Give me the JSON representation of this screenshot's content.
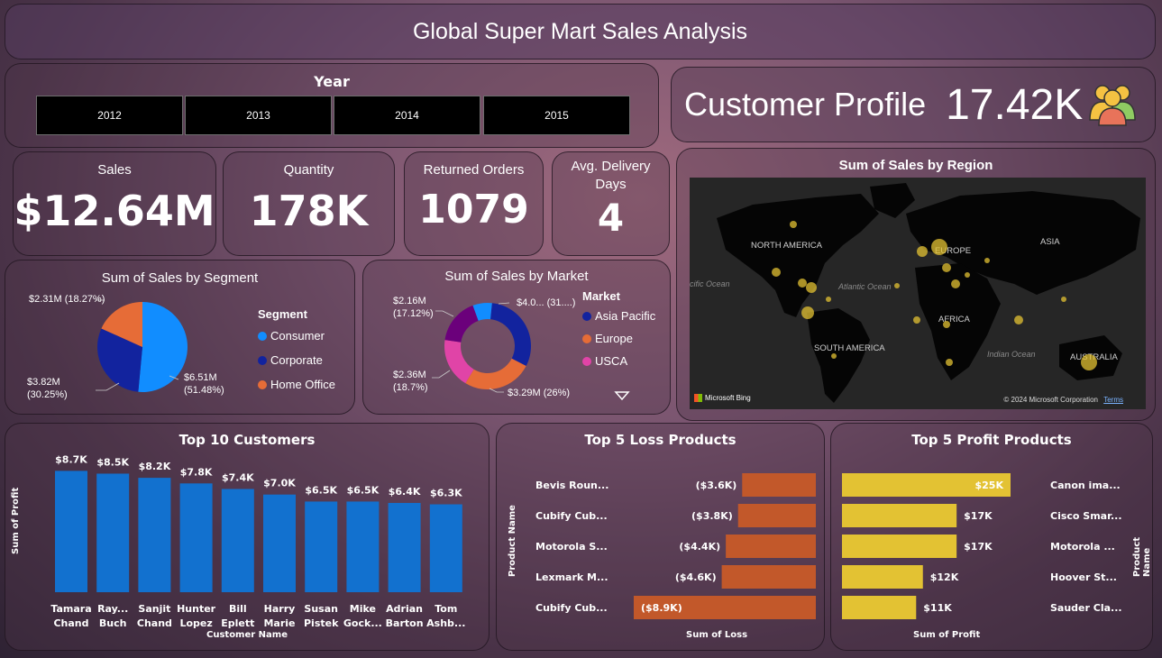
{
  "header": {
    "title": "Global Super Mart Sales Analysis"
  },
  "year_slicer": {
    "label": "Year",
    "options": [
      "2012",
      "2013",
      "2014",
      "2015"
    ]
  },
  "customer_profile": {
    "label": "Customer Profile",
    "value": "17.42K",
    "icon": "people-icon"
  },
  "kpis": {
    "sales": {
      "title": "Sales",
      "value": "$12.64M"
    },
    "quantity": {
      "title": "Quantity",
      "value": "178K"
    },
    "returned": {
      "title": "Returned Orders",
      "value": "1079"
    },
    "delivery": {
      "title_line1": "Avg. Delivery",
      "title_line2": "Days",
      "value": "4"
    }
  },
  "segment_chart": {
    "title": "Sum of Sales by Segment",
    "legend_title": "Segment",
    "slices": [
      {
        "name": "Consumer",
        "label1": "$6.51M",
        "label2": "(51.48%)",
        "value": 51.48,
        "color": "#118DFF"
      },
      {
        "name": "Corporate",
        "label1": "$3.82M",
        "label2": "(30.25%)",
        "value": 30.25,
        "color": "#12239E"
      },
      {
        "name": "Home Office",
        "label1": "$2.31M (18.27%)",
        "label2": "",
        "value": 18.27,
        "color": "#E66C37"
      }
    ]
  },
  "market_chart": {
    "title": "Sum of Sales by Market",
    "legend_title": "Market",
    "legend": [
      {
        "name": "Asia Pacific",
        "color": "#12239E"
      },
      {
        "name": "Europe",
        "color": "#E66C37"
      },
      {
        "name": "USCA",
        "color": "#E044A7"
      }
    ],
    "slices": [
      {
        "value": 31,
        "color": "#12239E"
      },
      {
        "value": 26,
        "color": "#E66C37"
      },
      {
        "value": 18.7,
        "color": "#E044A7"
      },
      {
        "value": 17.12,
        "color": "#6B007B"
      },
      {
        "value": 7.18,
        "color": "#118DFF"
      }
    ],
    "labels": {
      "top_right": "$4.0... (31....)",
      "bottom_right": "$3.29M (26%)",
      "bottom_left1": "$2.36M",
      "bottom_left2": "(18.7%)",
      "top_left1": "$2.16M",
      "top_left2": "(17.12%)"
    }
  },
  "region_map": {
    "title": "Sum of Sales by Region",
    "labels": {
      "north_america": "NORTH AMERICA",
      "europe": "EUROPE",
      "asia": "ASIA",
      "africa": "AFRICA",
      "south_america": "SOUTH AMERICA",
      "australia": "AUSTRALIA",
      "atlantic": "Atlantic Ocean",
      "indian": "Indian Ocean",
      "pacific": "cific Ocean"
    },
    "bing": "Microsoft Bing",
    "copyright": "© 2024 Microsoft Corporation",
    "terms": "Terms"
  },
  "top_customers": {
    "title": "Top 10 Customers",
    "ylabel": "Sum of Profit",
    "xlabel": "Customer Name",
    "names1": [
      "Tamara",
      "Ray...",
      "Sanjit",
      "Hunter",
      "Bill",
      "Harry",
      "Susan",
      "Mike",
      "Adrian",
      "Tom"
    ],
    "names2": [
      "Chand",
      "Buch",
      "Chand",
      "Lopez",
      "Eplett",
      "Marie",
      "Pistek",
      "Gock...",
      "Barton",
      "Ashb..."
    ],
    "labels": [
      "$8.7K",
      "$8.5K",
      "$8.2K",
      "$7.8K",
      "$7.4K",
      "$7.0K",
      "$6.5K",
      "$6.5K",
      "$6.4K",
      "$6.3K"
    ],
    "values": [
      8.7,
      8.5,
      8.2,
      7.8,
      7.4,
      7.0,
      6.5,
      6.5,
      6.4,
      6.3
    ],
    "color": "#1271CF"
  },
  "loss_products": {
    "title": "Top 5 Loss Products",
    "ylabel": "Product Name",
    "xlabel": "Sum of Loss",
    "names": [
      "Bevis Roun...",
      "Cubify Cub...",
      "Motorola S...",
      "Lexmark M...",
      "Cubify Cub..."
    ],
    "labels": [
      "($3.6K)",
      "($3.8K)",
      "($4.4K)",
      "($4.6K)",
      "($8.9K)"
    ],
    "values": [
      3.6,
      3.8,
      4.4,
      4.6,
      8.9
    ],
    "color": "#C2582A"
  },
  "profit_products": {
    "title": "Top 5 Profit Products",
    "ylabel": "Product Name",
    "xlabel": "Sum of Profit",
    "names": [
      "Canon ima...",
      "Cisco Smar...",
      "Motorola ...",
      "Hoover St...",
      "Sauder Cla..."
    ],
    "labels": [
      "$25K",
      "$17K",
      "$17K",
      "$12K",
      "$11K"
    ],
    "values": [
      25,
      17,
      17,
      12,
      11
    ],
    "color": "#E3C233"
  }
}
